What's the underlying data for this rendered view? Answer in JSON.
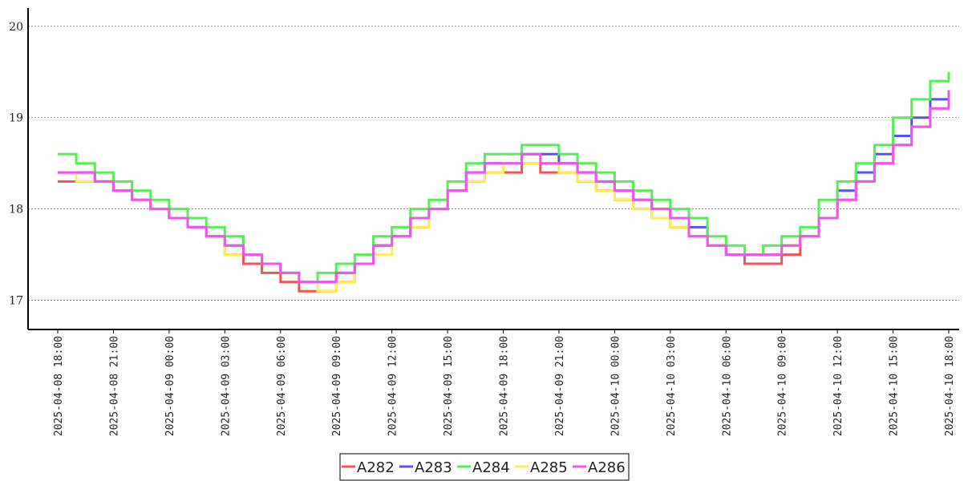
{
  "chart_data": {
    "type": "line",
    "step": true,
    "title": "",
    "xlabel": "",
    "ylabel": "",
    "ylim": [
      16.68,
      20.2
    ],
    "yticks": [
      17,
      18,
      19,
      20
    ],
    "grid": "horizontal dotted",
    "legend_position": "bottom-center",
    "x_ticks": [
      "2025-04-08 18:00",
      "2025-04-08 21:00",
      "2025-04-09 00:00",
      "2025-04-09 03:00",
      "2025-04-09 06:00",
      "2025-04-09 09:00",
      "2025-04-09 12:00",
      "2025-04-09 15:00",
      "2025-04-09 18:00",
      "2025-04-09 21:00",
      "2025-04-10 00:00",
      "2025-04-10 03:00",
      "2025-04-10 06:00",
      "2025-04-10 09:00",
      "2025-04-10 12:00",
      "2025-04-10 15:00",
      "2025-04-10 18:00"
    ],
    "x": [
      "2025-04-08 18:00",
      "2025-04-08 19:00",
      "2025-04-08 20:00",
      "2025-04-08 21:00",
      "2025-04-08 22:00",
      "2025-04-08 23:00",
      "2025-04-09 00:00",
      "2025-04-09 01:00",
      "2025-04-09 02:00",
      "2025-04-09 03:00",
      "2025-04-09 04:00",
      "2025-04-09 05:00",
      "2025-04-09 06:00",
      "2025-04-09 07:00",
      "2025-04-09 08:00",
      "2025-04-09 09:00",
      "2025-04-09 10:00",
      "2025-04-09 11:00",
      "2025-04-09 12:00",
      "2025-04-09 13:00",
      "2025-04-09 14:00",
      "2025-04-09 15:00",
      "2025-04-09 16:00",
      "2025-04-09 17:00",
      "2025-04-09 18:00",
      "2025-04-09 19:00",
      "2025-04-09 20:00",
      "2025-04-09 21:00",
      "2025-04-09 22:00",
      "2025-04-09 23:00",
      "2025-04-10 00:00",
      "2025-04-10 01:00",
      "2025-04-10 02:00",
      "2025-04-10 03:00",
      "2025-04-10 04:00",
      "2025-04-10 05:00",
      "2025-04-10 06:00",
      "2025-04-10 07:00",
      "2025-04-10 08:00",
      "2025-04-10 09:00",
      "2025-04-10 10:00",
      "2025-04-10 11:00",
      "2025-04-10 12:00",
      "2025-04-10 13:00",
      "2025-04-10 14:00",
      "2025-04-10 15:00",
      "2025-04-10 16:00",
      "2025-04-10 17:00",
      "2025-04-10 18:00"
    ],
    "series": [
      {
        "name": "A282",
        "color": "#ee5555",
        "values": [
          18.3,
          18.3,
          18.3,
          18.2,
          18.1,
          18.0,
          17.9,
          17.8,
          17.7,
          17.5,
          17.4,
          17.3,
          17.2,
          17.1,
          17.1,
          17.2,
          17.4,
          17.6,
          17.7,
          17.8,
          18.0,
          18.2,
          18.3,
          18.4,
          18.4,
          18.5,
          18.4,
          18.4,
          18.3,
          18.2,
          18.1,
          18.0,
          17.9,
          17.8,
          17.7,
          17.6,
          17.5,
          17.4,
          17.4,
          17.5,
          17.7,
          17.9,
          18.1,
          18.3,
          18.5,
          18.7,
          18.9,
          19.1,
          19.2
        ]
      },
      {
        "name": "A283",
        "color": "#5555ee",
        "values": [
          18.4,
          18.4,
          18.3,
          18.2,
          18.1,
          18.0,
          17.9,
          17.8,
          17.7,
          17.6,
          17.5,
          17.4,
          17.3,
          17.2,
          17.2,
          17.3,
          17.4,
          17.6,
          17.7,
          17.9,
          18.0,
          18.2,
          18.4,
          18.5,
          18.5,
          18.6,
          18.6,
          18.5,
          18.4,
          18.3,
          18.2,
          18.1,
          18.0,
          17.9,
          17.8,
          17.6,
          17.5,
          17.5,
          17.5,
          17.6,
          17.7,
          17.9,
          18.2,
          18.4,
          18.6,
          18.8,
          19.0,
          19.2,
          19.3
        ]
      },
      {
        "name": "A284",
        "color": "#55ee55",
        "values": [
          18.6,
          18.5,
          18.4,
          18.3,
          18.2,
          18.1,
          18.0,
          17.9,
          17.8,
          17.7,
          17.5,
          17.4,
          17.3,
          17.2,
          17.3,
          17.4,
          17.5,
          17.7,
          17.8,
          18.0,
          18.1,
          18.3,
          18.5,
          18.6,
          18.6,
          18.7,
          18.7,
          18.6,
          18.5,
          18.4,
          18.3,
          18.2,
          18.1,
          18.0,
          17.9,
          17.7,
          17.6,
          17.5,
          17.6,
          17.7,
          17.8,
          18.1,
          18.3,
          18.5,
          18.7,
          19.0,
          19.2,
          19.4,
          19.5
        ]
      },
      {
        "name": "A285",
        "color": "#ffee55",
        "values": [
          18.4,
          18.3,
          18.3,
          18.2,
          18.1,
          18.0,
          17.9,
          17.8,
          17.7,
          17.5,
          17.5,
          17.4,
          17.3,
          17.2,
          17.1,
          17.2,
          17.4,
          17.5,
          17.7,
          17.8,
          18.0,
          18.2,
          18.3,
          18.4,
          18.5,
          18.5,
          18.5,
          18.4,
          18.3,
          18.2,
          18.1,
          18.0,
          17.9,
          17.8,
          17.7,
          17.6,
          17.5,
          17.5,
          17.5,
          17.6,
          17.7,
          17.9,
          18.1,
          18.3,
          18.5,
          18.7,
          18.9,
          19.1,
          19.2
        ]
      },
      {
        "name": "A286",
        "color": "#ee55ee",
        "values": [
          18.4,
          18.4,
          18.3,
          18.2,
          18.1,
          18.0,
          17.9,
          17.8,
          17.7,
          17.6,
          17.5,
          17.4,
          17.3,
          17.2,
          17.2,
          17.3,
          17.4,
          17.6,
          17.7,
          17.9,
          18.0,
          18.2,
          18.4,
          18.5,
          18.5,
          18.6,
          18.5,
          18.5,
          18.4,
          18.3,
          18.2,
          18.1,
          18.0,
          17.9,
          17.7,
          17.6,
          17.5,
          17.5,
          17.5,
          17.6,
          17.7,
          17.9,
          18.1,
          18.3,
          18.5,
          18.7,
          18.9,
          19.1,
          19.3
        ]
      }
    ]
  }
}
